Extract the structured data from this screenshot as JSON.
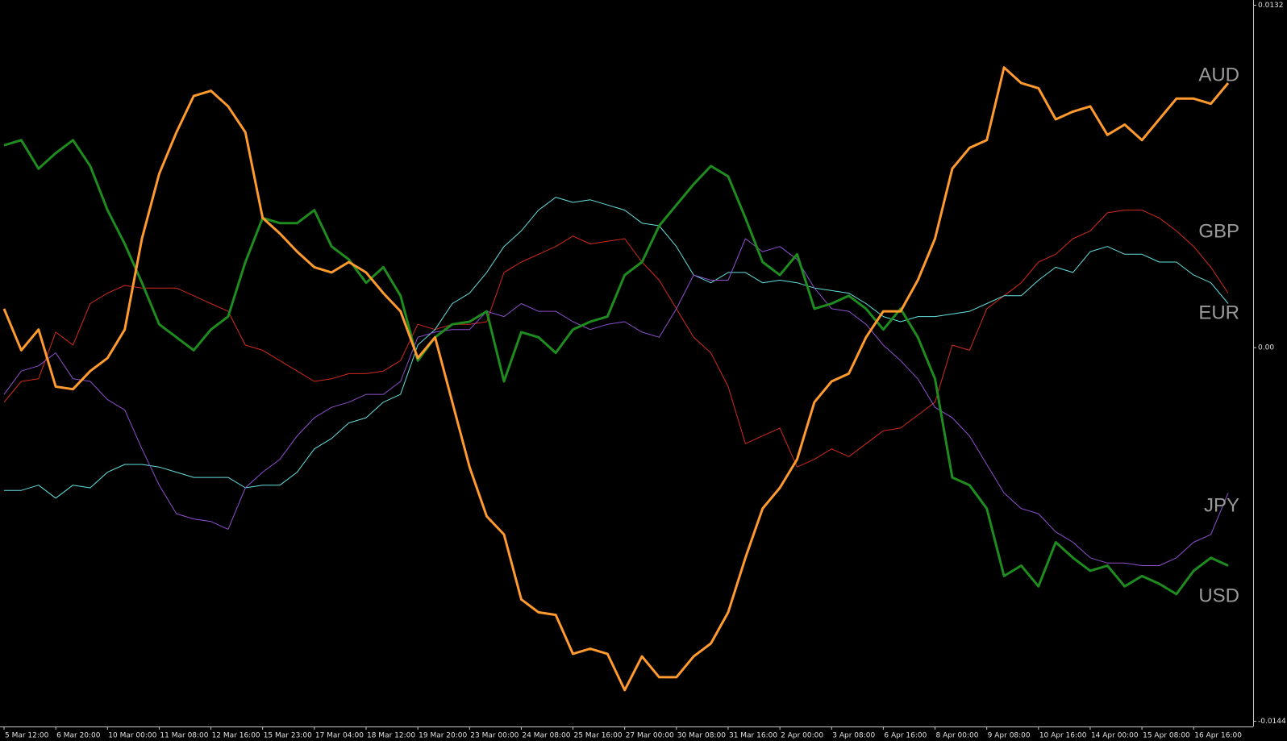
{
  "chart_data": {
    "type": "line",
    "categories": [
      "5 Mar 12:00",
      null,
      null,
      "6 Mar 20:00",
      null,
      null,
      "10 Mar 00:00",
      null,
      null,
      "11 Mar 08:00",
      null,
      null,
      "12 Mar 16:00",
      null,
      null,
      "15 Mar 23:00",
      null,
      null,
      "17 Mar 04:00",
      null,
      null,
      "18 Mar 12:00",
      null,
      null,
      "19 Mar 20:00",
      null,
      null,
      "23 Mar 00:00",
      null,
      null,
      "24 Mar 08:00",
      null,
      null,
      "25 Mar 16:00",
      null,
      null,
      "27 Mar 00:00",
      null,
      null,
      "30 Mar 08:00",
      null,
      null,
      "31 Mar 16:00",
      null,
      null,
      "2 Apr 00:00",
      null,
      null,
      "3 Apr 08:00",
      null,
      null,
      "6 Apr 16:00",
      null,
      null,
      "8 Apr 00:00",
      null,
      null,
      "9 Apr 08:00",
      null,
      null,
      "10 Apr 16:00",
      null,
      null,
      "14 Apr 00:00",
      null,
      null,
      "15 Apr 08:00",
      null,
      null,
      "16 Apr 16:00",
      null,
      null
    ],
    "series": [
      {
        "name": "AUD",
        "color": "#ff9a2e",
        "values": [
          0.0015,
          -0.0001,
          0.0007,
          -0.0015,
          -0.0016,
          -0.0009,
          -0.0004,
          0.0007,
          0.0042,
          0.0067,
          0.0083,
          0.0097,
          0.0099,
          0.0093,
          0.0083,
          0.005,
          0.0044,
          0.0037,
          0.0031,
          0.0029,
          0.0033,
          0.0029,
          0.0021,
          0.0014,
          -0.0004,
          0.0004,
          -0.0021,
          -0.0046,
          -0.0065,
          -0.0072,
          -0.0097,
          -0.0102,
          -0.0103,
          -0.0118,
          -0.0116,
          -0.0118,
          -0.0132,
          -0.0119,
          -0.0127,
          -0.0127,
          -0.0119,
          -0.0114,
          -0.0102,
          -0.0081,
          -0.0062,
          -0.0054,
          -0.0043,
          -0.0021,
          -0.0013,
          -0.001,
          0.0004,
          0.0014,
          0.0014,
          0.0026,
          0.0042,
          0.0069,
          0.0077,
          0.008,
          0.0108,
          0.0102,
          0.01,
          0.0088,
          0.0091,
          0.0093,
          0.0082,
          0.0086,
          0.008,
          0.0088,
          0.0096,
          0.0096,
          0.0094,
          0.0102
        ]
      },
      {
        "name": "GBP",
        "color": "#d42a1e",
        "values": [
          -0.0021,
          -0.0013,
          -0.0012,
          0.0006,
          0.0001,
          0.0017,
          0.0021,
          0.0024,
          0.0023,
          0.0023,
          0.0023,
          0.002,
          0.0017,
          0.0014,
          0.0001,
          -0.0001,
          -0.0005,
          -0.0009,
          -0.0013,
          -0.0012,
          -0.001,
          -0.001,
          -0.0009,
          -0.0005,
          0.0009,
          0.0007,
          0.0009,
          0.0009,
          0.001,
          0.0029,
          0.0033,
          0.0036,
          0.0039,
          0.0043,
          0.004,
          0.0041,
          0.0042,
          0.0033,
          0.0026,
          0.0015,
          0.0004,
          -0.0002,
          -0.0015,
          -0.0037,
          -0.0034,
          -0.0031,
          -0.0046,
          -0.0043,
          -0.0039,
          -0.0042,
          -0.0037,
          -0.0032,
          -0.0031,
          -0.0026,
          -0.0021,
          0.0001,
          -0.0001,
          0.0015,
          0.002,
          0.0025,
          0.0033,
          0.0036,
          0.0042,
          0.0045,
          0.0052,
          0.0053,
          0.0053,
          0.005,
          0.0045,
          0.0039,
          0.0031,
          0.0021
        ]
      },
      {
        "name": "EUR",
        "color": "#66e0e0",
        "values": [
          -0.0055,
          -0.0055,
          -0.0053,
          -0.0058,
          -0.0053,
          -0.0054,
          -0.0048,
          -0.0045,
          -0.0045,
          -0.0046,
          -0.0048,
          -0.005,
          -0.005,
          -0.005,
          -0.0054,
          -0.0053,
          -0.0053,
          -0.0048,
          -0.0039,
          -0.0035,
          -0.0029,
          -0.0027,
          -0.0021,
          -0.0018,
          0.0001,
          0.0007,
          0.0017,
          0.0021,
          0.0029,
          0.0039,
          0.0045,
          0.0053,
          0.0058,
          0.0056,
          0.0057,
          0.0055,
          0.0053,
          0.0048,
          0.0047,
          0.0039,
          0.0028,
          0.0025,
          0.0029,
          0.0029,
          0.0025,
          0.0026,
          0.0025,
          0.0023,
          0.0022,
          0.0021,
          0.0017,
          0.0012,
          0.001,
          0.0012,
          0.0012,
          0.0013,
          0.0014,
          0.0017,
          0.002,
          0.002,
          0.0026,
          0.0031,
          0.0029,
          0.0037,
          0.0039,
          0.0036,
          0.0036,
          0.0033,
          0.0033,
          0.0028,
          0.0025,
          0.0017
        ]
      },
      {
        "name": "JPY",
        "color": "#9050d0",
        "values": [
          -0.0018,
          -0.0009,
          -0.0007,
          -0.0002,
          -0.0012,
          -0.0013,
          -0.002,
          -0.0024,
          -0.0039,
          -0.0053,
          -0.0064,
          -0.0066,
          -0.0067,
          -0.007,
          -0.0054,
          -0.0048,
          -0.0043,
          -0.0034,
          -0.0027,
          -0.0023,
          -0.0021,
          -0.0018,
          -0.0018,
          -0.0013,
          0.0004,
          0.0006,
          0.0007,
          0.0007,
          0.0014,
          0.0012,
          0.0017,
          0.0014,
          0.0014,
          0.001,
          0.0007,
          0.0009,
          0.001,
          0.0006,
          0.0004,
          0.0015,
          0.0028,
          0.0026,
          0.0026,
          0.0042,
          0.0037,
          0.0039,
          0.0034,
          0.0023,
          0.0015,
          0.0014,
          0.0009,
          0.0001,
          -0.0005,
          -0.0012,
          -0.0023,
          -0.0027,
          -0.0034,
          -0.0045,
          -0.0056,
          -0.0062,
          -0.0064,
          -0.0071,
          -0.0075,
          -0.0081,
          -0.0083,
          -0.0083,
          -0.0084,
          -0.0084,
          -0.0081,
          -0.0075,
          -0.0072,
          -0.0056
        ]
      },
      {
        "name": "USD",
        "color": "#1e8c1e",
        "values": [
          0.0078,
          0.008,
          0.0069,
          0.0075,
          0.008,
          0.007,
          0.0053,
          0.004,
          0.0025,
          0.0009,
          0.0004,
          -0.0001,
          0.0007,
          0.0012,
          0.0033,
          0.005,
          0.0048,
          0.0048,
          0.0053,
          0.0039,
          0.0034,
          0.0025,
          0.0031,
          0.002,
          -0.0005,
          0.0004,
          0.0009,
          0.001,
          0.0014,
          -0.0013,
          0.0006,
          0.0004,
          -0.0002,
          0.0007,
          0.001,
          0.0012,
          0.0028,
          0.0033,
          0.0047,
          0.0055,
          0.0063,
          0.007,
          0.0066,
          0.005,
          0.0033,
          0.0028,
          0.0036,
          0.0015,
          0.0017,
          0.002,
          0.0015,
          0.0007,
          0.0015,
          0.0004,
          -0.0012,
          -0.005,
          -0.0053,
          -0.0062,
          -0.0088,
          -0.0084,
          -0.0092,
          -0.0075,
          -0.0081,
          -0.0086,
          -0.0084,
          -0.0092,
          -0.0088,
          -0.0091,
          -0.0095,
          -0.0086,
          -0.0081,
          -0.0084
        ]
      }
    ],
    "ylim": [
      -0.0146,
      0.0134
    ],
    "yticks": [
      0.0132,
      {
        "value": 0,
        "label": "0.00"
      },
      -0.0144
    ]
  }
}
